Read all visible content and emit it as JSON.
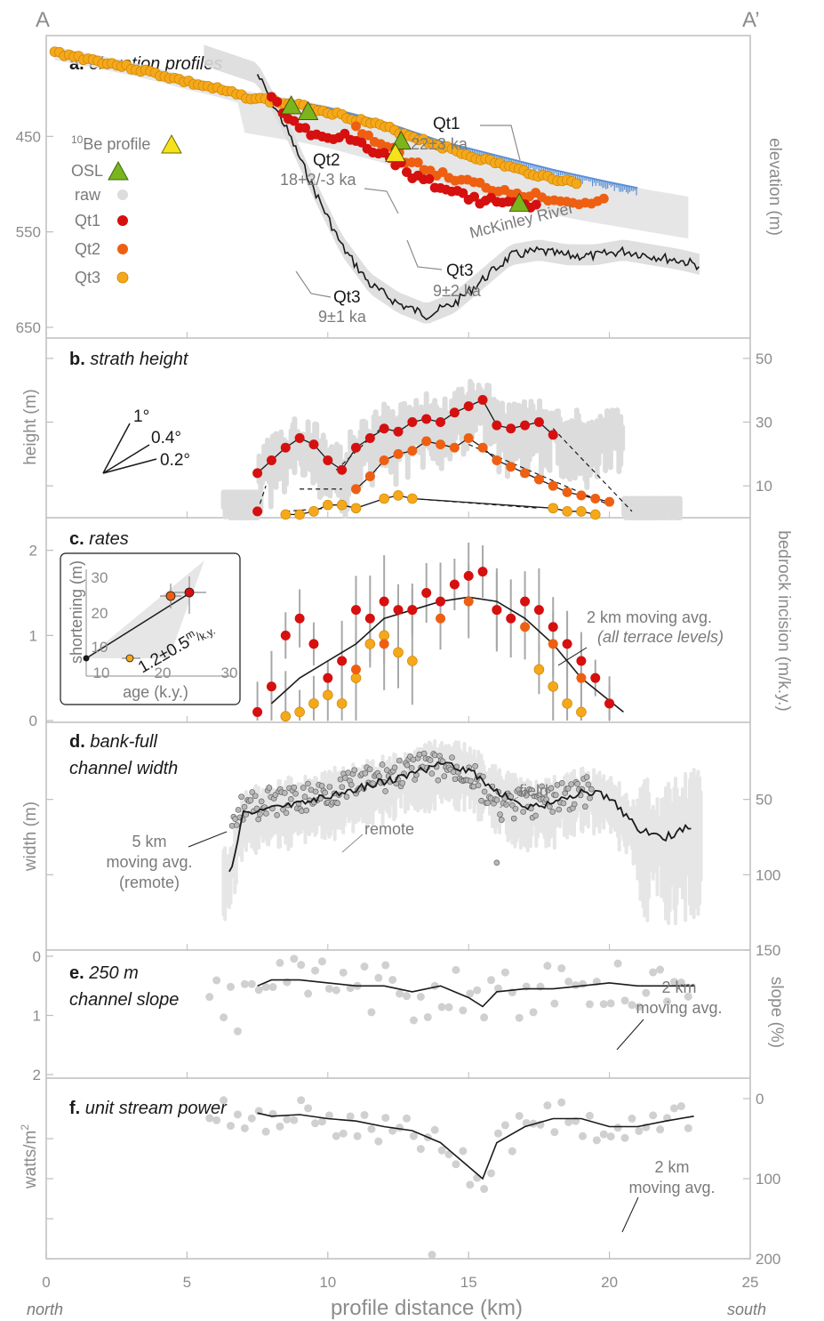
{
  "corner_labels": {
    "left": "A",
    "right": "A’"
  },
  "x_axis": {
    "label": "profile distance (km)",
    "ticks": [
      0,
      5,
      10,
      15,
      20,
      25
    ],
    "range": [
      0,
      25
    ],
    "left_label": "north",
    "right_label": "south"
  },
  "colors": {
    "qt1": "#d60f0f",
    "qt2": "#ee5f12",
    "qt3": "#f5a81a",
    "raw": "#dcdcdc",
    "river": "#5a8fd6",
    "line": "#1a1a1a",
    "olive": "#7ab51d",
    "yellow": "#f5e21a"
  },
  "panel_a": {
    "letter": "a.",
    "title": "elevation profiles",
    "ylabel": "elevation (m)",
    "yticks": [
      650,
      550,
      450
    ],
    "ylim": [
      350,
      650
    ],
    "legend": {
      "be_sup": "10",
      "be_text": "Be profile",
      "osl": "OSL",
      "raw": "raw",
      "qt1": "Qt1",
      "qt2": "Qt2",
      "qt3": "Qt3"
    },
    "river_label": "McKinley River",
    "ann": {
      "qt1_name": "Qt1",
      "qt1_age": "22±3 ka",
      "qt2_name": "Qt2",
      "qt2_age": "18+2/-3 ka",
      "qt3a_name": "Qt3",
      "qt3a_age": "9±2 ka",
      "qt3b_name": "Qt3",
      "qt3b_age": "9±1 ka"
    }
  },
  "panel_b": {
    "letter": "b.",
    "title": "strath height",
    "ylabel": "height (m)",
    "yticks": [
      50,
      30,
      10
    ],
    "ylim": [
      0,
      55
    ],
    "angles": [
      "1°",
      "0.4°",
      "0.2°"
    ]
  },
  "panel_c": {
    "letter": "c.",
    "title": "rates",
    "ylabel": "bedrock incision (m/k.y.)",
    "yticks": [
      2,
      1,
      0
    ],
    "ylim": [
      0,
      2.3
    ],
    "avg_label": "2 km moving avg.",
    "avg_sub": "(all terrace levels)",
    "inset": {
      "ylabel": "shortening (m)",
      "xlabel": "age (k.y.)",
      "xticks": [
        10,
        20,
        30
      ],
      "yticks": [
        10,
        20,
        30
      ],
      "rate_text": "1.2±0.5",
      "rate_unit_num": "m",
      "rate_unit_den": "k.y."
    }
  },
  "panel_d": {
    "letter": "d.",
    "title_l1": "bank-full",
    "title_l2": "channel width",
    "ylabel": "width (m)",
    "yticks": [
      150,
      100,
      50
    ],
    "ylim": [
      0,
      150
    ],
    "field_label": "field",
    "remote_label": "remote",
    "avg_l1": "5 km",
    "avg_l2": "moving avg.",
    "avg_l3": "(remote)"
  },
  "panel_e": {
    "letter": "e.",
    "title_l1": "250 m",
    "title_l2": "channel slope",
    "ylabel": "slope (%)",
    "yticks": [
      2,
      1,
      0
    ],
    "ylim": [
      0,
      2
    ],
    "avg_l1": "2 km",
    "avg_l2": "moving avg."
  },
  "panel_f": {
    "letter": "f.",
    "title": "unit stream power",
    "ylabel": "watts/m",
    "ylabel_sup": "2",
    "yticks": [
      200,
      100,
      0
    ],
    "ylim": [
      0,
      200
    ],
    "avg_l1": "2 km",
    "avg_l2": "moving avg."
  },
  "chart_data": [
    {
      "panel": "a",
      "type": "line",
      "series": [
        {
          "name": "raw",
          "x": [
            7.5,
            8.5,
            9.5,
            10.5,
            11.5,
            12.5,
            13.5,
            14.5,
            15.5,
            16.5,
            17.5,
            18.5,
            19.5,
            20.5,
            21.5,
            22.5,
            23.2
          ],
          "y": [
            385,
            440,
            505,
            565,
            605,
            625,
            637,
            625,
            600,
            575,
            570,
            575,
            575,
            570,
            575,
            580,
            585
          ]
        },
        {
          "name": "McKinley River",
          "x": [
            8.6,
            10,
            12,
            14,
            16,
            18,
            20,
            21
          ],
          "y": [
            412,
            420,
            435,
            455,
            470,
            485,
            498,
            504
          ]
        },
        {
          "name": "Qt1",
          "x": [
            8,
            8.5,
            9,
            9.5,
            10,
            10.5,
            11,
            11.5,
            12,
            12.5,
            13,
            13.5,
            14,
            14.5,
            15,
            15.5,
            16,
            16.5,
            17,
            17.5
          ],
          "y": [
            408,
            428,
            440,
            450,
            452,
            448,
            452,
            462,
            470,
            478,
            490,
            497,
            502,
            508,
            515,
            517,
            518,
            520,
            522,
            526
          ]
        },
        {
          "name": "Qt2",
          "x": [
            11,
            12,
            13,
            14,
            15,
            16,
            17,
            18,
            19,
            20
          ],
          "y": [
            440,
            460,
            478,
            490,
            498,
            505,
            510,
            515,
            518,
            518
          ]
        },
        {
          "name": "Qt3",
          "x": [
            0.3,
            1,
            2,
            3,
            4,
            5,
            6,
            7,
            8,
            9,
            10,
            11,
            12,
            13,
            14,
            15,
            16,
            17,
            18,
            19
          ],
          "y": [
            362,
            366,
            372,
            378,
            385,
            393,
            400,
            408,
            413,
            418,
            424,
            432,
            440,
            450,
            460,
            470,
            478,
            487,
            494,
            500
          ]
        }
      ]
    },
    {
      "panel": "b",
      "type": "scatter",
      "series": [
        {
          "name": "Qt1",
          "x": [
            7.5,
            8,
            8.5,
            9,
            9.5,
            10,
            10.5,
            11,
            11.5,
            12,
            12.5,
            13,
            13.5,
            14,
            14.5,
            15,
            15.5,
            16,
            16.5,
            17,
            17.5,
            18
          ],
          "y": [
            14,
            18,
            22,
            25,
            23,
            18,
            15,
            22,
            25,
            28,
            27,
            30,
            31,
            30,
            33,
            35,
            37,
            29,
            28,
            29,
            30,
            26
          ]
        },
        {
          "name": "Qt2",
          "x": [
            11,
            11.5,
            12,
            12.5,
            13,
            13.5,
            14,
            14.5,
            15,
            15.5,
            16,
            16.5,
            17,
            17.5,
            18,
            18.5,
            19,
            19.5,
            20
          ],
          "y": [
            9,
            13,
            18,
            20,
            21,
            24,
            23,
            22,
            25,
            22,
            18,
            16,
            14,
            12,
            10,
            8,
            7,
            6,
            5
          ]
        },
        {
          "name": "Qt3",
          "x": [
            8.5,
            9,
            9.5,
            10,
            10.5,
            11,
            12,
            12.5,
            13,
            18,
            18.5,
            19,
            19.5
          ],
          "y": [
            1,
            1,
            2,
            4,
            4,
            3,
            6,
            7,
            6,
            3,
            2,
            2,
            1
          ]
        }
      ]
    },
    {
      "panel": "c",
      "type": "scatter",
      "series": [
        {
          "name": "Qt1",
          "x": [
            7.5,
            8,
            8.5,
            9,
            9.5,
            10,
            10.5,
            11,
            11.5,
            12,
            12.5,
            13,
            13.5,
            14,
            14.5,
            15,
            15.5,
            16,
            16.5,
            17,
            17.5,
            18,
            18.5,
            19,
            19.5,
            20
          ],
          "y": [
            0.1,
            0.4,
            1.0,
            1.2,
            0.9,
            0.5,
            0.7,
            1.3,
            1.2,
            1.4,
            1.3,
            1.3,
            1.5,
            1.4,
            1.6,
            1.7,
            1.75,
            1.3,
            1.2,
            1.4,
            1.3,
            1.1,
            0.9,
            0.7,
            0.5,
            0.2
          ]
        },
        {
          "name": "Qt2",
          "x": [
            11,
            12,
            13,
            14,
            15,
            16,
            17,
            18,
            19,
            20
          ],
          "y": [
            0.6,
            0.9,
            1.3,
            1.2,
            1.4,
            1.3,
            1.1,
            0.9,
            0.5,
            0.2
          ]
        },
        {
          "name": "Qt3",
          "x": [
            8.5,
            9,
            9.5,
            10,
            10.5,
            11,
            11.5,
            12,
            12.5,
            13,
            17.5,
            18,
            18.5,
            19
          ],
          "y": [
            0.05,
            0.1,
            0.2,
            0.3,
            0.2,
            0.5,
            0.9,
            1.0,
            0.8,
            0.7,
            0.6,
            0.4,
            0.2,
            0.1
          ]
        },
        {
          "name": "2 km moving avg.",
          "x": [
            8,
            9,
            10,
            11,
            12,
            13,
            14,
            15,
            16,
            17,
            18,
            19,
            20.5
          ],
          "y": [
            0.2,
            0.5,
            0.7,
            0.9,
            1.2,
            1.3,
            1.4,
            1.45,
            1.4,
            1.2,
            0.9,
            0.5,
            0.1
          ]
        }
      ]
    },
    {
      "panel": "d",
      "type": "line",
      "series": [
        {
          "name": "5 km moving avg. (remote)",
          "x": [
            6.5,
            7,
            8,
            9,
            10,
            11,
            12,
            13,
            14,
            15,
            16,
            17,
            18,
            19,
            20,
            21,
            22,
            23
          ],
          "y": [
            100,
            60,
            55,
            52,
            48,
            43,
            38,
            33,
            27,
            30,
            45,
            55,
            53,
            45,
            48,
            70,
            75,
            67
          ]
        },
        {
          "name": "field",
          "x": [
            6.5,
            7,
            8,
            9,
            10,
            11,
            12,
            13,
            14,
            15,
            16,
            17,
            18,
            19
          ],
          "y": [
            60,
            55,
            52,
            50,
            45,
            40,
            35,
            30,
            28,
            32,
            55,
            53,
            50,
            45
          ]
        }
      ]
    },
    {
      "panel": "e",
      "type": "line",
      "series": [
        {
          "name": "2 km moving avg.",
          "x": [
            7.5,
            8,
            9,
            10,
            11,
            12,
            13,
            14,
            15,
            15.5,
            16,
            17,
            18,
            19,
            20,
            21,
            22,
            23
          ],
          "y": [
            0.5,
            0.4,
            0.4,
            0.45,
            0.5,
            0.5,
            0.6,
            0.5,
            0.7,
            0.85,
            0.6,
            0.55,
            0.55,
            0.5,
            0.45,
            0.5,
            0.5,
            0.5
          ]
        }
      ]
    },
    {
      "panel": "f",
      "type": "line",
      "series": [
        {
          "name": "2 km moving avg.",
          "x": [
            7.5,
            8,
            9,
            10,
            11,
            12,
            13,
            14,
            15,
            15.5,
            16,
            17,
            18,
            19,
            20,
            21,
            22,
            23
          ],
          "y": [
            18,
            22,
            20,
            25,
            28,
            35,
            40,
            55,
            85,
            100,
            55,
            35,
            25,
            25,
            35,
            35,
            28,
            22
          ]
        }
      ]
    }
  ]
}
